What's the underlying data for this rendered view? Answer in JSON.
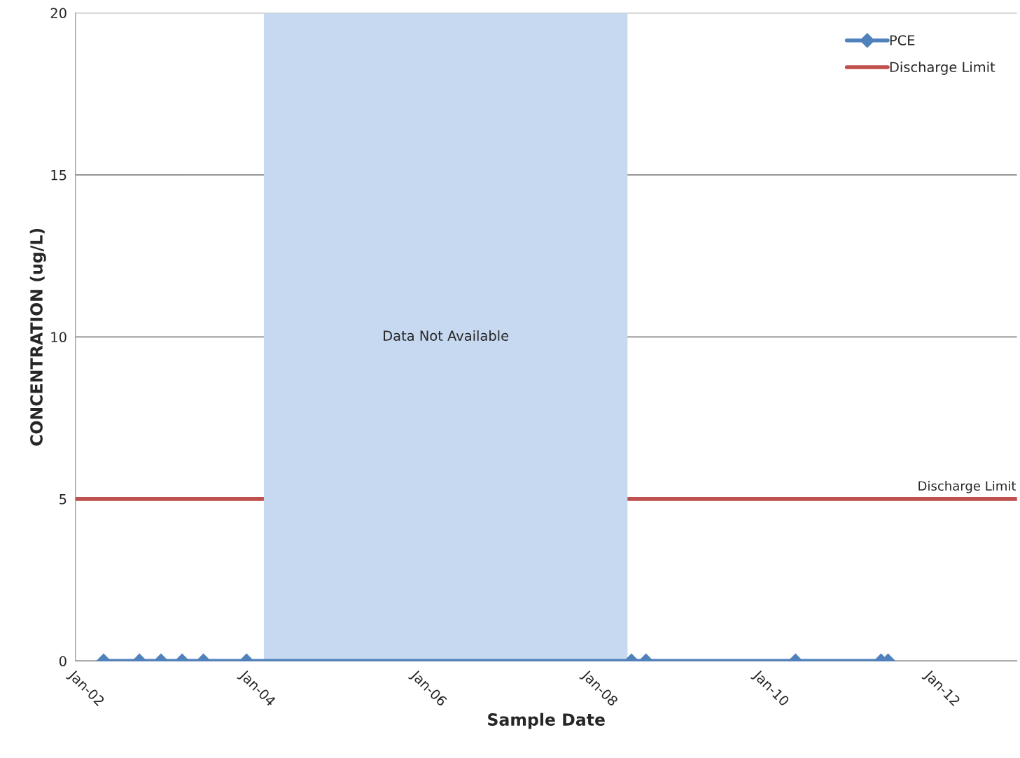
{
  "chart_data": {
    "type": "line",
    "xlabel": "Sample Date",
    "ylabel": "CONCENTRATION (ug/L)",
    "xlim": [
      "2002-01",
      "2013-01"
    ],
    "xticks": [
      {
        "value": "2002-01",
        "label": "Jan-02"
      },
      {
        "value": "2004-01",
        "label": "Jan-04"
      },
      {
        "value": "2006-01",
        "label": "Jan-06"
      },
      {
        "value": "2008-01",
        "label": "Jan-08"
      },
      {
        "value": "2010-01",
        "label": "Jan-10"
      },
      {
        "value": "2012-01",
        "label": "Jan-12"
      }
    ],
    "ylim": [
      0,
      20
    ],
    "yticks": [
      0,
      5,
      10,
      15,
      20
    ],
    "grid": "y",
    "legend": "top right",
    "series": [
      {
        "name": "PCE",
        "color": "#4f81bd",
        "marker": "diamond",
        "x": [
          "2002-05",
          "2002-10",
          "2003-01",
          "2003-04",
          "2003-07",
          "2004-01",
          "2008-07",
          "2008-09",
          "2010-06",
          "2011-06",
          "2011-07"
        ],
        "values": [
          0,
          0,
          0,
          0,
          0,
          0,
          0,
          0,
          0,
          0,
          0
        ]
      },
      {
        "name": "Discharge Limit",
        "color": "#c0504d",
        "x": [
          "2002-01",
          "2013-01"
        ],
        "values": [
          5,
          5
        ]
      }
    ],
    "bands": [
      {
        "axis": "x",
        "from": "2004-03-15",
        "to": "2008-06-14",
        "label": "Data Not Available",
        "color": "#c6d9f1"
      }
    ],
    "annotations": [
      {
        "text": "Discharge Limit",
        "x": "2012-06",
        "y": 5
      }
    ]
  }
}
